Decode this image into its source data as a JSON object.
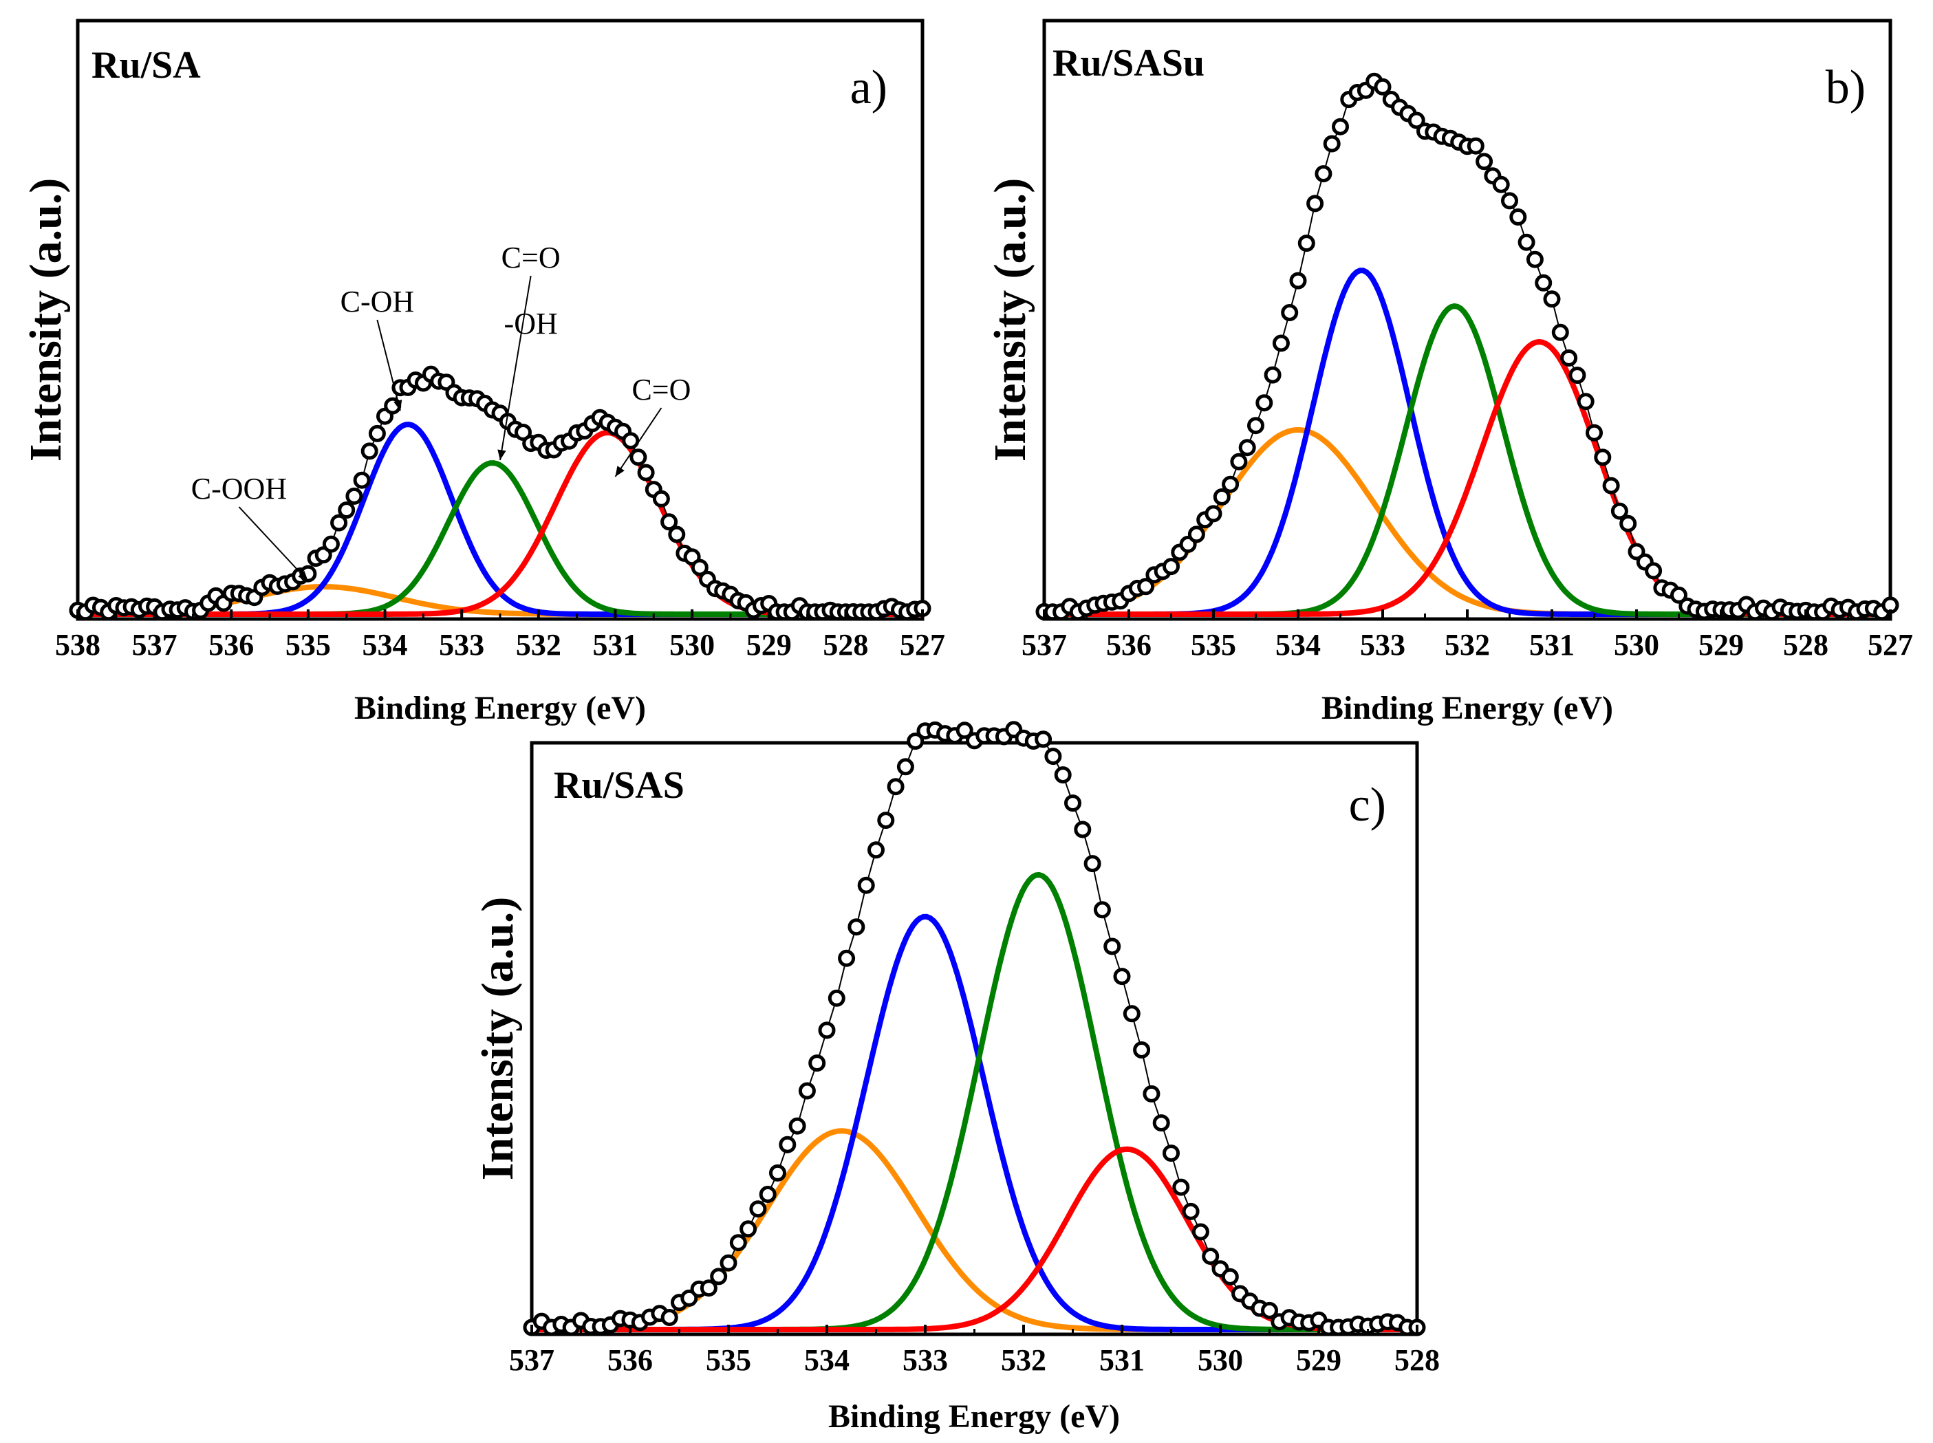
{
  "figure": {
    "description_free": true
  },
  "chart_data": [
    {
      "type": "line",
      "panel": "a)",
      "sample": "Ru/SA",
      "xlabel": "Binding Energy (eV)",
      "ylabel": "Intensity (a.u.)",
      "xlim": [
        538,
        527
      ],
      "ylim": [
        0,
        1
      ],
      "x_ticks": [
        "538",
        "537",
        "536",
        "535",
        "534",
        "533",
        "532",
        "531",
        "530",
        "529",
        "528",
        "527"
      ],
      "components": [
        {
          "name": "C-OOH",
          "color": "#ff8c00",
          "center": 534.8,
          "fwhm": 2.2,
          "height": 0.05
        },
        {
          "name": "C-OH",
          "color": "#0000ff",
          "center": 533.7,
          "fwhm": 1.35,
          "height": 0.345
        },
        {
          "name": "C=O -OH",
          "color": "#008000",
          "center": 532.6,
          "fwhm": 1.35,
          "height": 0.275
        },
        {
          "name": "C=O",
          "color": "#ff0000",
          "center": 531.1,
          "fwhm": 1.6,
          "height": 0.33
        }
      ],
      "annotations": [
        {
          "text": "C-OOH",
          "x": 535.9,
          "y": 0.21,
          "target_x": 535.0,
          "target_y": 0.06
        },
        {
          "text": "C-OH",
          "x": 534.1,
          "y": 0.55,
          "target_x": 533.8,
          "target_y": 0.37
        },
        {
          "text": "C=O",
          "x": 532.1,
          "y": 0.63,
          "target_x": 532.5,
          "target_y": 0.28
        },
        {
          "text": "-OH",
          "x": 532.1,
          "y": 0.51,
          "target_x": null,
          "target_y": null
        },
        {
          "text": "C=O",
          "x": 530.4,
          "y": 0.39,
          "target_x": 531.0,
          "target_y": 0.25
        }
      ],
      "noise_seed": 1
    },
    {
      "type": "line",
      "panel": "b)",
      "sample": "Ru/SASu",
      "xlabel": "Binding Energy (eV)",
      "ylabel": "Intensity (a.u.)",
      "xlim": [
        537,
        527
      ],
      "ylim": [
        0,
        1
      ],
      "x_ticks": [
        "537",
        "536",
        "535",
        "534",
        "533",
        "532",
        "531",
        "530",
        "529",
        "528",
        "527"
      ],
      "components": [
        {
          "name": "orange",
          "color": "#ff8c00",
          "center": 534.0,
          "fwhm": 2.1,
          "height": 0.335
        },
        {
          "name": "blue",
          "color": "#0000ff",
          "center": 533.25,
          "fwhm": 1.35,
          "height": 0.625
        },
        {
          "name": "green",
          "color": "#008000",
          "center": 532.15,
          "fwhm": 1.35,
          "height": 0.56
        },
        {
          "name": "red",
          "color": "#ff0000",
          "center": 531.15,
          "fwhm": 1.6,
          "height": 0.495
        }
      ],
      "annotations": [],
      "noise_seed": 2
    },
    {
      "type": "line",
      "panel": "c)",
      "sample": "Ru/SAS",
      "xlabel": "Binding Energy (eV)",
      "ylabel": "Intensity (a.u.)",
      "xlim": [
        537,
        528
      ],
      "ylim": [
        0,
        1
      ],
      "x_ticks": [
        "537",
        "536",
        "535",
        "534",
        "533",
        "532",
        "531",
        "530",
        "529",
        "528"
      ],
      "components": [
        {
          "name": "orange",
          "color": "#ff8c00",
          "center": 533.85,
          "fwhm": 1.8,
          "height": 0.38
        },
        {
          "name": "blue",
          "color": "#0000ff",
          "center": 533.0,
          "fwhm": 1.4,
          "height": 0.79
        },
        {
          "name": "green",
          "color": "#008000",
          "center": 531.85,
          "fwhm": 1.4,
          "height": 0.87
        },
        {
          "name": "red",
          "color": "#ff0000",
          "center": 530.95,
          "fwhm": 1.45,
          "height": 0.345
        }
      ],
      "annotations": [],
      "noise_seed": 3
    }
  ]
}
